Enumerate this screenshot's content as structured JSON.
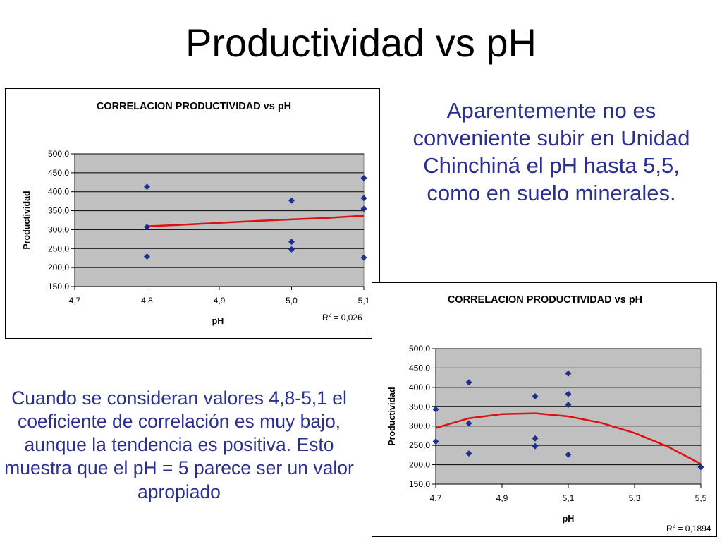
{
  "slide": {
    "title": "Productividad vs pH",
    "note_top": "Aparentemente no es conveniente subir en Unidad Chinchiná el pH hasta 5,5, como en suelo minerales.",
    "note_bottom": "Cuando se consideran valores 4,8-5,1 el coeficiente de correlación es muy bajo, aunque la tendencia es positiva. Esto muestra que el pH = 5 parece ser un valor apropiado"
  },
  "colors": {
    "point": "#1f2f8f",
    "trend": "#e01010",
    "plot_bg": "#c0c0c0",
    "grid": "#000000",
    "text_blue": "#2b2f8f"
  },
  "chart_data": [
    {
      "type": "scatter",
      "title": "CORRELACION PRODUCTIVIDAD vs pH",
      "xlabel": "pH",
      "ylabel": "Productividad",
      "xlim": [
        4.7,
        5.1
      ],
      "ylim": [
        150,
        500
      ],
      "xticks": [
        4.7,
        4.8,
        4.9,
        5.0,
        5.1
      ],
      "xtick_labels": [
        "4,7",
        "4,8",
        "4,9",
        "5,0",
        "5,1"
      ],
      "yticks": [
        150,
        200,
        250,
        300,
        350,
        400,
        450,
        500
      ],
      "ytick_labels": [
        "150,0",
        "200,0",
        "250,0",
        "300,0",
        "350,0",
        "400,0",
        "450,0",
        "500,0"
      ],
      "grid": true,
      "points": [
        {
          "x": 4.8,
          "y": 413
        },
        {
          "x": 4.8,
          "y": 307
        },
        {
          "x": 4.8,
          "y": 229
        },
        {
          "x": 5.0,
          "y": 377
        },
        {
          "x": 5.0,
          "y": 268
        },
        {
          "x": 5.0,
          "y": 248
        },
        {
          "x": 5.1,
          "y": 436
        },
        {
          "x": 5.1,
          "y": 383
        },
        {
          "x": 5.1,
          "y": 355
        },
        {
          "x": 5.1,
          "y": 226
        }
      ],
      "trendline": {
        "x": [
          4.8,
          4.85,
          4.9,
          4.95,
          5.0,
          5.05,
          5.1
        ],
        "y": [
          309,
          313,
          318,
          323,
          327,
          331,
          337
        ]
      },
      "r2_label": "R² = 0,026"
    },
    {
      "type": "scatter",
      "title": "CORRELACION PRODUCTIVIDAD vs pH",
      "xlabel": "pH",
      "ylabel": "Productividad",
      "xlim": [
        4.7,
        5.5
      ],
      "ylim": [
        150,
        500
      ],
      "xticks": [
        4.7,
        4.9,
        5.1,
        5.3,
        5.5
      ],
      "xtick_labels": [
        "4,7",
        "4,9",
        "5,1",
        "5,3",
        "5,5"
      ],
      "yticks": [
        150,
        200,
        250,
        300,
        350,
        400,
        450,
        500
      ],
      "ytick_labels": [
        "150,0",
        "200,0",
        "250,0",
        "300,0",
        "350,0",
        "400,0",
        "450,0",
        "500,0"
      ],
      "grid": true,
      "points": [
        {
          "x": 4.7,
          "y": 343
        },
        {
          "x": 4.7,
          "y": 260
        },
        {
          "x": 4.8,
          "y": 413
        },
        {
          "x": 4.8,
          "y": 307
        },
        {
          "x": 4.8,
          "y": 229
        },
        {
          "x": 5.0,
          "y": 377
        },
        {
          "x": 5.0,
          "y": 268
        },
        {
          "x": 5.0,
          "y": 248
        },
        {
          "x": 5.1,
          "y": 436
        },
        {
          "x": 5.1,
          "y": 383
        },
        {
          "x": 5.1,
          "y": 355
        },
        {
          "x": 5.1,
          "y": 226
        },
        {
          "x": 5.5,
          "y": 194
        }
      ],
      "trendline": {
        "x": [
          4.7,
          4.8,
          4.9,
          5.0,
          5.1,
          5.2,
          5.3,
          5.4,
          5.5
        ],
        "y": [
          295,
          320,
          331,
          333,
          325,
          308,
          282,
          247,
          202
        ]
      },
      "r2_label": "R² = 0,1894"
    }
  ]
}
